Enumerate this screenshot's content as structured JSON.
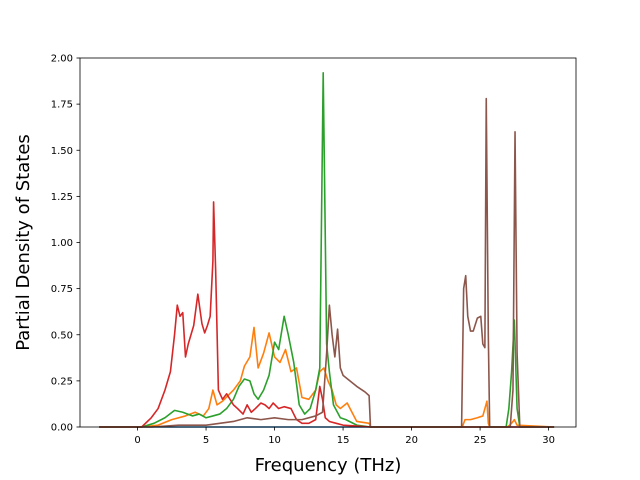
{
  "chart_data": {
    "type": "line",
    "title": "",
    "xlabel": "Frequency (THz)",
    "ylabel": "Partial Density of States",
    "xlim": [
      -4.2,
      32.0
    ],
    "ylim": [
      0.0,
      2.0
    ],
    "xticks": [
      0,
      5,
      10,
      15,
      20,
      25,
      30
    ],
    "xtick_labels": [
      "0",
      "5",
      "10",
      "15",
      "20",
      "25",
      "30"
    ],
    "yticks": [
      0.0,
      0.25,
      0.5,
      0.75,
      1.0,
      1.25,
      1.5,
      1.75,
      2.0
    ],
    "ytick_labels": [
      "0.00",
      "0.25",
      "0.50",
      "0.75",
      "1.00",
      "1.25",
      "1.50",
      "1.75",
      "2.00"
    ],
    "grid": false,
    "legend": "none",
    "series": [
      {
        "color": "#1f77b4",
        "x": [
          -2.8,
          30.4
        ],
        "y": [
          0,
          0
        ]
      },
      {
        "color": "#ff7f0e",
        "x": [
          -2.8,
          0.3,
          1.5,
          2.5,
          3.5,
          4.2,
          4.8,
          5.2,
          5.5,
          5.8,
          6.2,
          7.0,
          7.5,
          7.8,
          8.2,
          8.5,
          8.8,
          9.2,
          9.6,
          10.0,
          10.4,
          10.8,
          11.2,
          11.6,
          12.0,
          12.5,
          13.0,
          13.3,
          13.6,
          13.9,
          14.2,
          14.5,
          14.8,
          15.3,
          16.0,
          16.9,
          17.0,
          23.7,
          23.9,
          24.3,
          24.8,
          25.2,
          25.5,
          25.6,
          25.7,
          27.0,
          27.3,
          27.5,
          27.7,
          30.4
        ],
        "y": [
          0,
          0,
          0.01,
          0.04,
          0.06,
          0.08,
          0.06,
          0.1,
          0.2,
          0.12,
          0.14,
          0.2,
          0.25,
          0.33,
          0.38,
          0.54,
          0.32,
          0.4,
          0.51,
          0.38,
          0.35,
          0.42,
          0.3,
          0.32,
          0.16,
          0.15,
          0.2,
          0.3,
          0.32,
          0.25,
          0.2,
          0.12,
          0.1,
          0.13,
          0.03,
          0.02,
          0,
          0,
          0.04,
          0.04,
          0.05,
          0.06,
          0.14,
          0.02,
          0,
          0,
          0.02,
          0.04,
          0.01,
          0
        ]
      },
      {
        "color": "#2ca02c",
        "x": [
          -2.8,
          0.3,
          1.2,
          2.0,
          2.7,
          3.3,
          4.0,
          4.5,
          5.0,
          5.5,
          6.0,
          6.5,
          7.0,
          7.4,
          7.8,
          8.2,
          8.5,
          8.8,
          9.2,
          9.6,
          10.0,
          10.3,
          10.7,
          11.0,
          11.4,
          11.8,
          12.2,
          12.6,
          13.0,
          13.3,
          13.55,
          13.8,
          14.0,
          14.3,
          14.8,
          15.2,
          16.0,
          17.0,
          26.9,
          27.1,
          27.3,
          27.5,
          27.7,
          27.9,
          30.4
        ],
        "y": [
          0,
          0,
          0.02,
          0.05,
          0.09,
          0.08,
          0.06,
          0.07,
          0.05,
          0.06,
          0.07,
          0.1,
          0.15,
          0.22,
          0.26,
          0.25,
          0.18,
          0.15,
          0.2,
          0.28,
          0.46,
          0.42,
          0.6,
          0.5,
          0.35,
          0.12,
          0.07,
          0.1,
          0.2,
          0.32,
          1.92,
          0.45,
          0.3,
          0.12,
          0.05,
          0.04,
          0.01,
          0,
          0,
          0.1,
          0.3,
          0.58,
          0.1,
          0,
          0
        ]
      },
      {
        "color": "#d62728",
        "x": [
          -2.8,
          0.3,
          1.0,
          1.5,
          2.0,
          2.4,
          2.7,
          2.9,
          3.1,
          3.3,
          3.5,
          3.7,
          3.9,
          4.1,
          4.4,
          4.7,
          4.9,
          5.1,
          5.3,
          5.5,
          5.55,
          5.7,
          5.9,
          6.2,
          6.5,
          7.0,
          7.3,
          7.7,
          8.0,
          8.3,
          8.6,
          9.0,
          9.3,
          9.6,
          9.9,
          10.3,
          10.7,
          11.2,
          11.6,
          12.0,
          12.5,
          13.0,
          13.3,
          13.5,
          13.7,
          14.0,
          14.5,
          15.0,
          16.0,
          17.0,
          30.4
        ],
        "y": [
          0,
          0,
          0.05,
          0.1,
          0.2,
          0.3,
          0.5,
          0.66,
          0.6,
          0.62,
          0.38,
          0.45,
          0.5,
          0.55,
          0.72,
          0.56,
          0.51,
          0.55,
          0.6,
          0.9,
          1.22,
          0.85,
          0.2,
          0.15,
          0.18,
          0.12,
          0.1,
          0.07,
          0.12,
          0.08,
          0.1,
          0.13,
          0.12,
          0.1,
          0.13,
          0.1,
          0.11,
          0.1,
          0.04,
          0.02,
          0.02,
          0.04,
          0.22,
          0.15,
          0.05,
          0.03,
          0.02,
          0.01,
          0.005,
          0,
          0
        ]
      },
      {
        "color": "#8c564b",
        "x": [
          -2.8,
          1.0,
          3.0,
          5.0,
          7.0,
          8.0,
          9.0,
          10.0,
          11.0,
          12.0,
          13.0,
          13.5,
          13.8,
          14.0,
          14.2,
          14.4,
          14.6,
          14.8,
          15.0,
          15.5,
          16.0,
          16.6,
          16.9,
          17.0,
          23.65,
          23.8,
          23.95,
          24.1,
          24.3,
          24.5,
          24.8,
          25.05,
          25.2,
          25.35,
          25.45,
          25.6,
          25.7,
          27.2,
          27.4,
          27.55,
          27.7,
          27.9,
          30.4
        ],
        "y": [
          0,
          0,
          0.01,
          0.01,
          0.03,
          0.05,
          0.04,
          0.05,
          0.04,
          0.04,
          0.06,
          0.08,
          0.4,
          0.66,
          0.5,
          0.38,
          0.53,
          0.32,
          0.28,
          0.25,
          0.22,
          0.19,
          0.17,
          0,
          0,
          0.75,
          0.82,
          0.6,
          0.52,
          0.52,
          0.59,
          0.6,
          0.45,
          0.43,
          1.78,
          0.5,
          0,
          0,
          0.2,
          1.6,
          0.4,
          0,
          0
        ]
      }
    ]
  }
}
